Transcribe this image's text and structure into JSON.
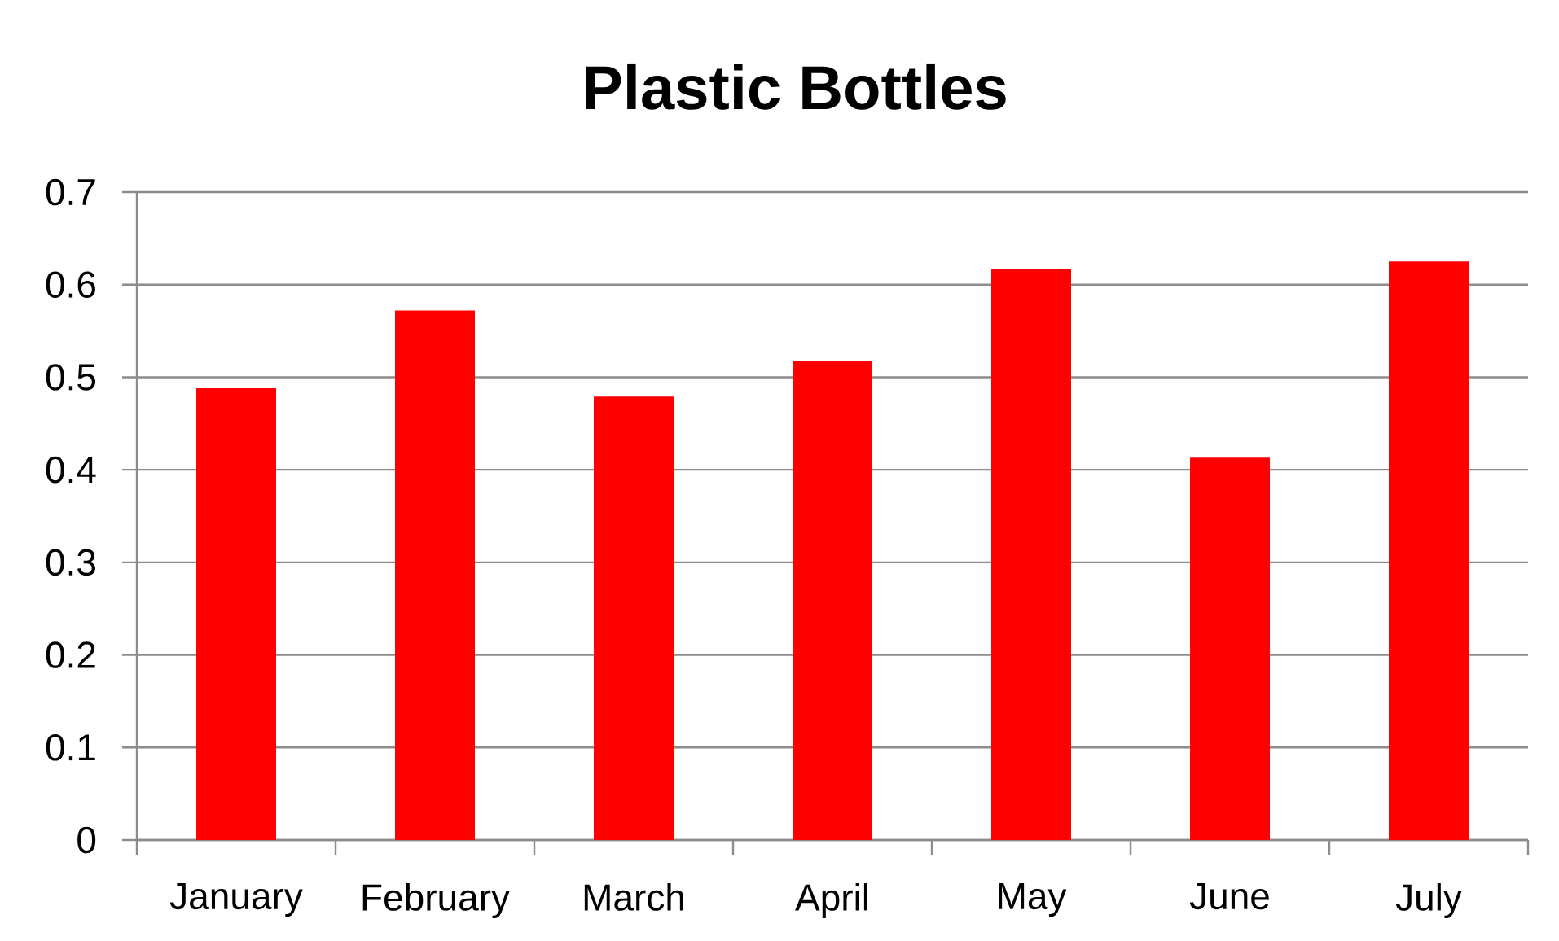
{
  "chart_data": {
    "type": "bar",
    "title": "Plastic Bottles",
    "categories": [
      "January",
      "February",
      "March",
      "April",
      "May",
      "June",
      "July"
    ],
    "values": [
      0.488,
      0.572,
      0.479,
      0.517,
      0.617,
      0.413,
      0.625
    ],
    "color": "#ff0000",
    "ylim": [
      0,
      0.7
    ],
    "yticks": [
      0,
      0.1,
      0.2,
      0.3,
      0.4,
      0.5,
      0.6,
      0.7
    ],
    "grid": "y"
  }
}
